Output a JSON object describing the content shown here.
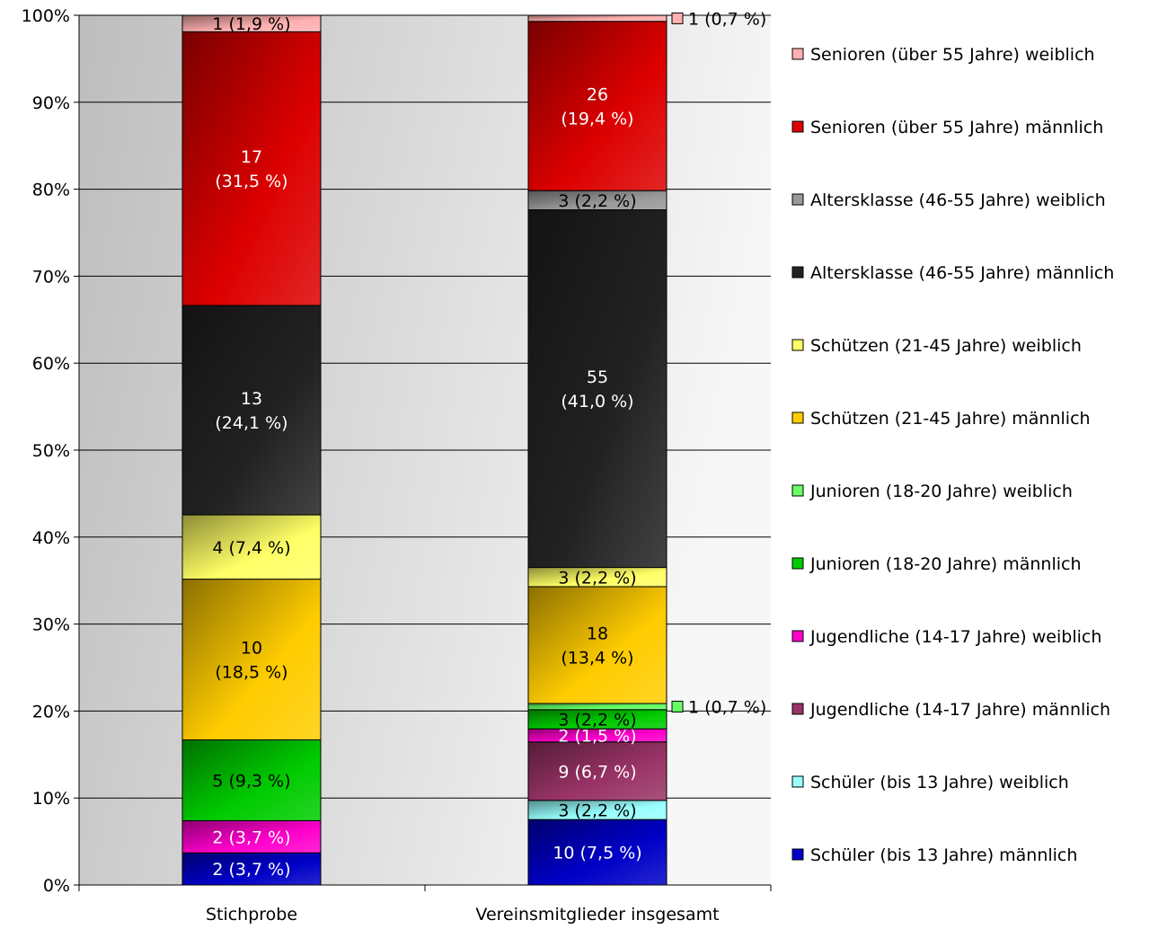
{
  "chart_data": {
    "type": "bar",
    "stacked": true,
    "normalized_percent": true,
    "title": "",
    "xlabel": "",
    "ylabel": "",
    "ylim": [
      0,
      100
    ],
    "y_ticks": [
      "0%",
      "10%",
      "20%",
      "30%",
      "40%",
      "50%",
      "60%",
      "70%",
      "80%",
      "90%",
      "100%"
    ],
    "categories": [
      "Stichprobe",
      "Vereinsmitglieder insgesamt"
    ],
    "legend_position": "right",
    "grid": true,
    "series": [
      {
        "name": "Schüler (bis 13 Jahre) männlich",
        "color": "#0000c8",
        "counts": [
          2,
          10
        ],
        "percents": [
          3.7,
          7.5
        ],
        "labels": [
          "2 (3,7 %)",
          "10 (7,5 %)"
        ]
      },
      {
        "name": "Schüler (bis 13 Jahre) weiblich",
        "color": "#99ffff",
        "counts": [
          0,
          3
        ],
        "percents": [
          0,
          2.2
        ],
        "labels": [
          "",
          "3 (2,2 %)"
        ]
      },
      {
        "name": "Jugendliche (14-17 Jahre) männlich",
        "color": "#993366",
        "counts": [
          0,
          9
        ],
        "percents": [
          0,
          6.7
        ],
        "labels": [
          "",
          "9 (6,7 %)"
        ]
      },
      {
        "name": "Jugendliche (14-17 Jahre) weiblich",
        "color": "#ff00cc",
        "counts": [
          2,
          2
        ],
        "percents": [
          3.7,
          1.5
        ],
        "labels": [
          "2 (3,7 %)",
          "2 (1,5 %)"
        ]
      },
      {
        "name": "Junioren (18-20 Jahre) männlich",
        "color": "#00cc00",
        "counts": [
          5,
          3
        ],
        "percents": [
          9.3,
          2.2
        ],
        "labels": [
          "5 (9,3 %)",
          "3 (2,2 %)"
        ]
      },
      {
        "name": "Junioren (18-20 Jahre) weiblich",
        "color": "#66ff66",
        "counts": [
          0,
          1
        ],
        "percents": [
          0,
          0.7
        ],
        "labels": [
          "",
          "1 (0,7 %)"
        ]
      },
      {
        "name": "Schützen (21-45 Jahre) männlich",
        "color": "#ffcc00",
        "counts": [
          10,
          18
        ],
        "percents": [
          18.5,
          13.4
        ],
        "labels": [
          "10\n(18,5 %)",
          "18\n(13,4 %)"
        ]
      },
      {
        "name": "Schützen (21-45 Jahre) weiblich",
        "color": "#ffff66",
        "counts": [
          4,
          3
        ],
        "percents": [
          7.4,
          2.2
        ],
        "labels": [
          "4 (7,4 %)",
          "3 (2,2 %)"
        ]
      },
      {
        "name": "Altersklasse (46-55 Jahre) männlich",
        "color": "#222222",
        "counts": [
          13,
          55
        ],
        "percents": [
          24.1,
          41.0
        ],
        "labels": [
          "13\n(24,1 %)",
          "55\n(41,0 %)"
        ]
      },
      {
        "name": "Altersklasse (46-55 Jahre) weiblich",
        "color": "#999999",
        "counts": [
          0,
          3
        ],
        "percents": [
          0,
          2.2
        ],
        "labels": [
          "",
          "3 (2,2 %)"
        ]
      },
      {
        "name": "Senioren (über 55 Jahre) männlich",
        "color": "#dd0000",
        "counts": [
          17,
          26
        ],
        "percents": [
          31.5,
          19.4
        ],
        "labels": [
          "17\n(31,5 %)",
          "26\n(19,4 %)"
        ]
      },
      {
        "name": "Senioren (über 55 Jahre) weiblich",
        "color": "#ffb0b0",
        "counts": [
          1,
          1
        ],
        "percents": [
          1.9,
          0.7
        ],
        "labels": [
          "1 (1,9 %)",
          "1 (0,7 %)"
        ]
      }
    ]
  }
}
